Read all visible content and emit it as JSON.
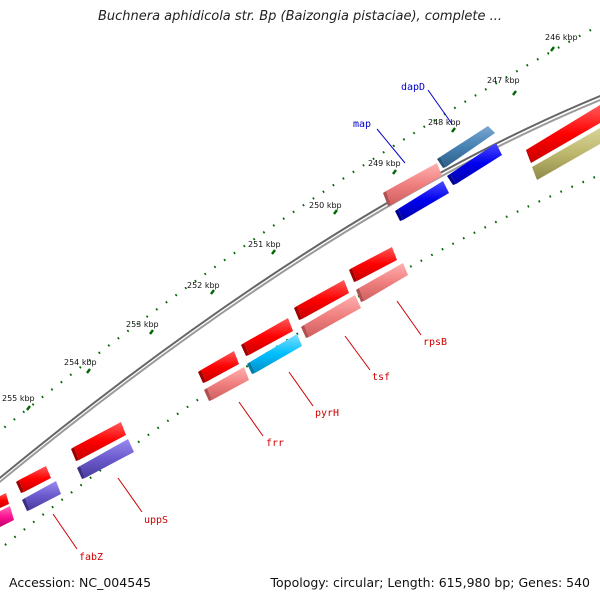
{
  "header": {
    "title": "Buchnera aphidicola str. Bp (Baizongia pistaciae), complete ..."
  },
  "footer": {
    "accession": "Accession: NC_004545",
    "summary": "Topology: circular; Length: 615,980 bp; Genes: 540"
  },
  "map": {
    "tick_labels": [
      {
        "kbp": 246,
        "label": "246 kbp"
      },
      {
        "kbp": 247,
        "label": "247 kbp"
      },
      {
        "kbp": 248,
        "label": "248 kbp"
      },
      {
        "kbp": 249,
        "label": "249 kbp"
      },
      {
        "kbp": 250,
        "label": "250 kbp"
      },
      {
        "kbp": 251,
        "label": "251 kbp"
      },
      {
        "kbp": 252,
        "label": "252 kbp"
      },
      {
        "kbp": 253,
        "label": "253 kbp"
      },
      {
        "kbp": 254,
        "label": "254 kbp"
      },
      {
        "kbp": 255,
        "label": "255 kbp"
      }
    ],
    "gene_labels": [
      {
        "name": "dapD",
        "color": "#0000cc"
      },
      {
        "name": "map",
        "color": "#0000cc"
      },
      {
        "name": "rpsB",
        "color": "#cc0000"
      },
      {
        "name": "tsf",
        "color": "#cc0000"
      },
      {
        "name": "pyrH",
        "color": "#cc0000"
      },
      {
        "name": "frr",
        "color": "#cc0000"
      },
      {
        "name": "uppS",
        "color": "#cc0000"
      },
      {
        "name": "fabZ",
        "color": "#cc0000"
      }
    ],
    "colors": {
      "backbone": "#888888",
      "tick_marks": "#006600",
      "cds": "#ff0000",
      "rna_light": "#f08080",
      "blue": "#0000ee",
      "steel_blue": "#4682b4",
      "cyan": "#00bfff",
      "purple": "#6a5acd",
      "olive": "#bdb76b",
      "magenta": "#ff1493"
    }
  }
}
